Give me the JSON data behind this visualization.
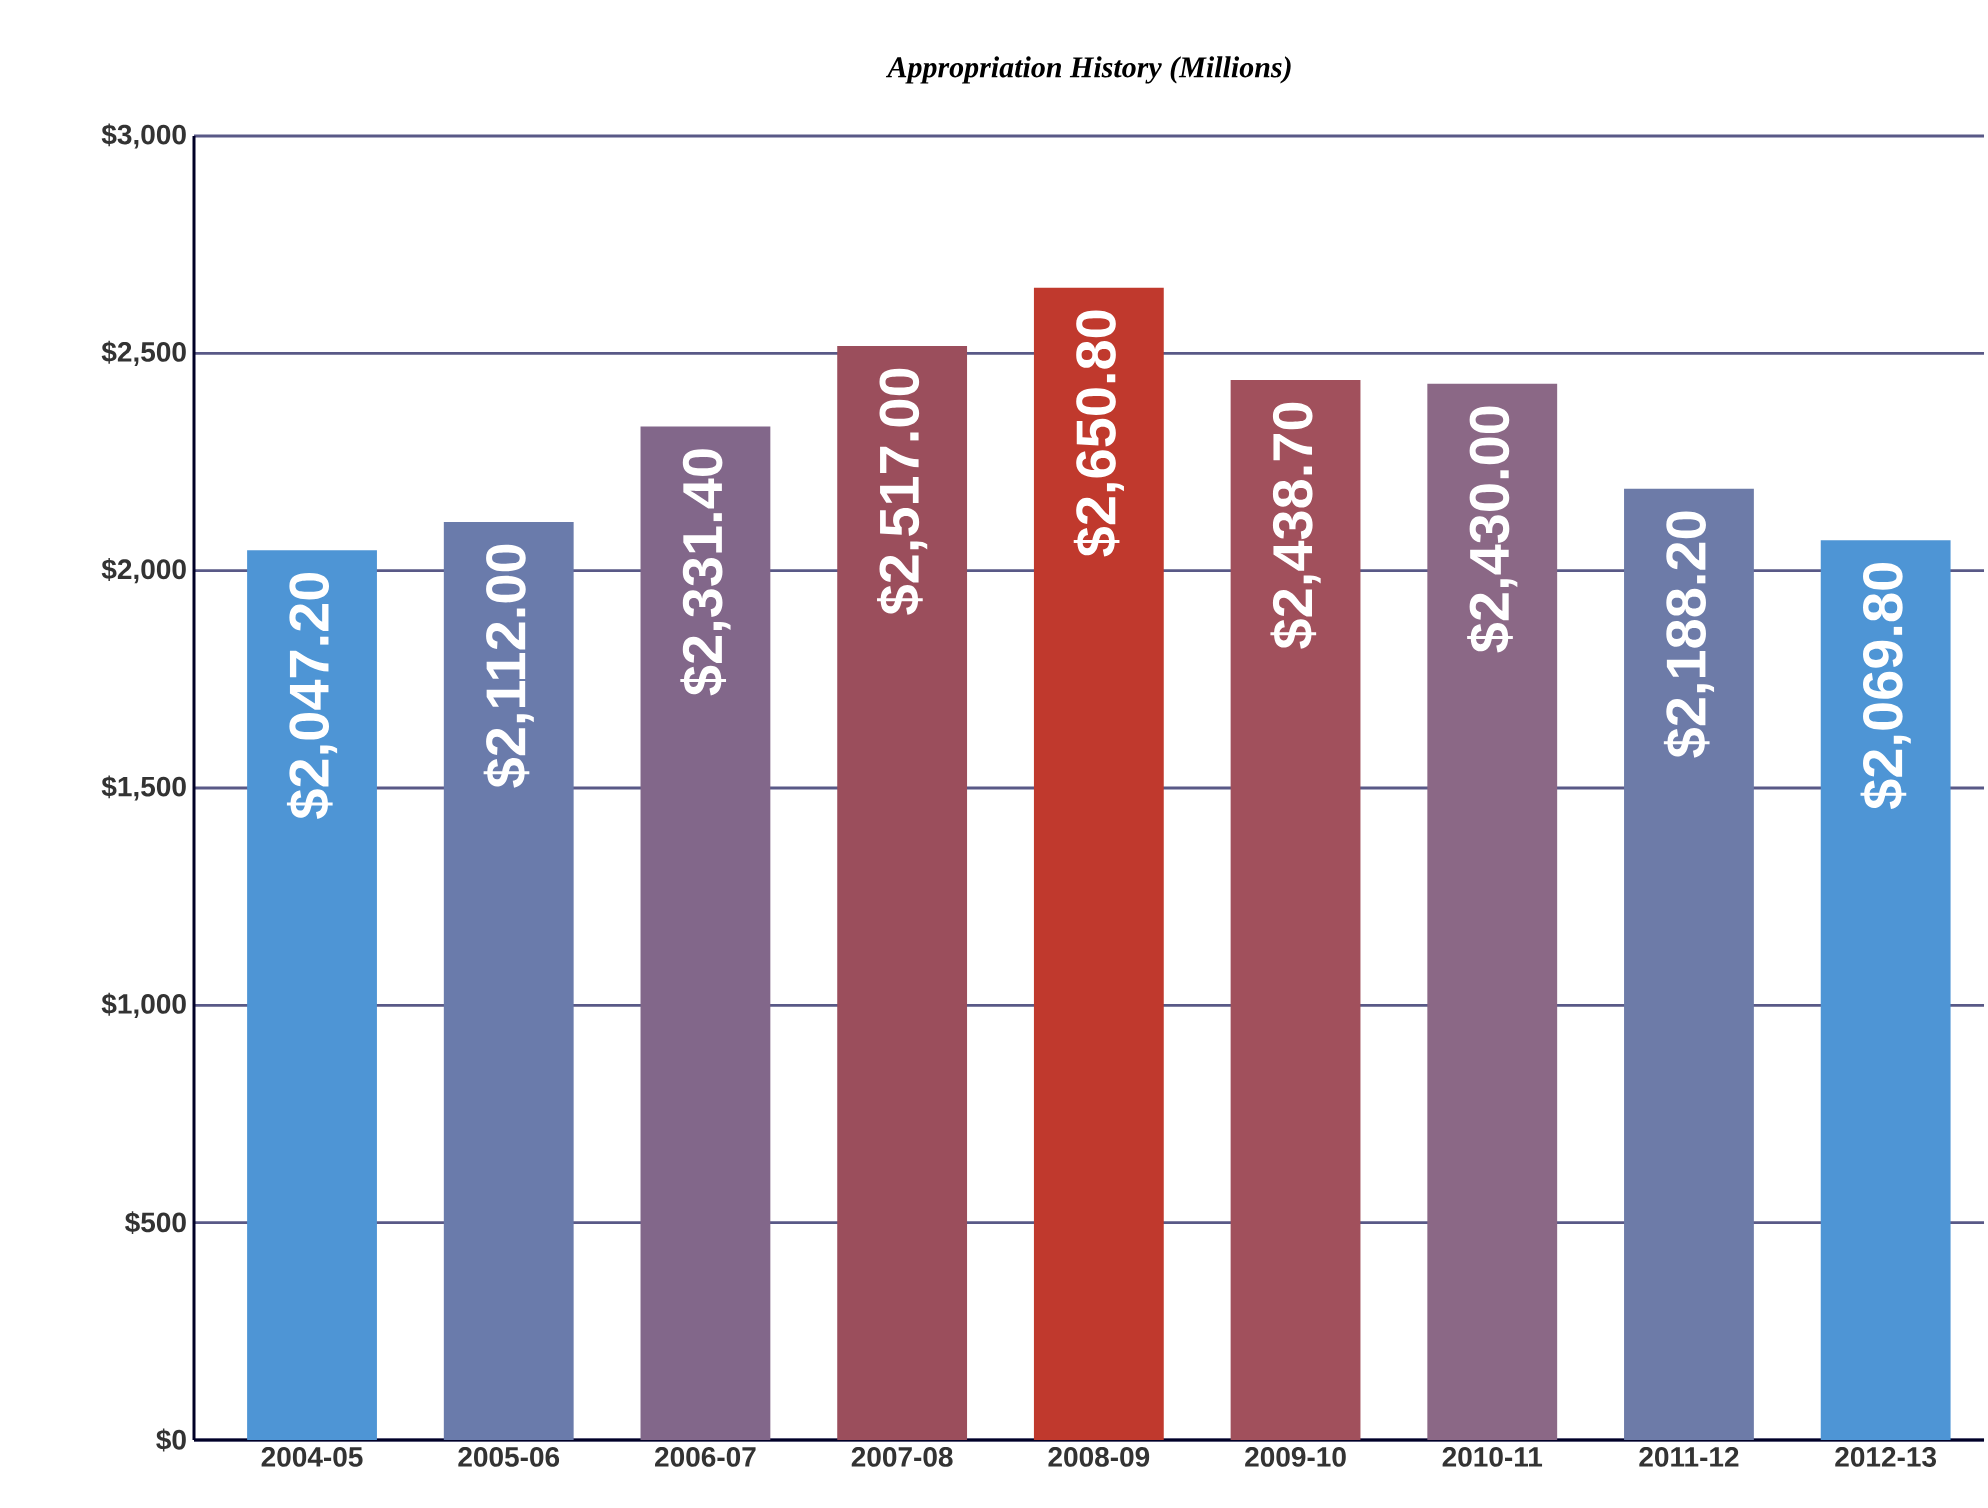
{
  "chart_data": {
    "type": "bar",
    "title": "Appropriation History (Millions)",
    "categories": [
      "2004-05",
      "2005-06",
      "2006-07",
      "2007-08",
      "2008-09",
      "2009-10",
      "2010-11",
      "2011-12",
      "2012-13"
    ],
    "values": [
      2047.2,
      2112.0,
      2331.4,
      2517.0,
      2650.8,
      2438.7,
      2430.0,
      2188.2,
      2069.8
    ],
    "value_labels": [
      "$2,047.20",
      "$2,112.00",
      "$2,331.40",
      "$2,517.00",
      "$2,650.80",
      "$2,438.70",
      "$2,430.00",
      "$2,188.20",
      "$2,069.80"
    ],
    "colors": [
      "#4e95d5",
      "#6a7bab",
      "#82678a",
      "#9b4e5c",
      "#c0392d",
      "#a1505c",
      "#8b6886",
      "#6d7ba8",
      "#4e95d5"
    ],
    "ylim": [
      0,
      3000
    ],
    "yticks": [
      {
        "value": 0,
        "label": "$0"
      },
      {
        "value": 500,
        "label": "$500"
      },
      {
        "value": 1000,
        "label": "$1,000"
      },
      {
        "value": 1500,
        "label": "$1,500"
      },
      {
        "value": 2000,
        "label": "$2,000"
      },
      {
        "value": 2500,
        "label": "$2,500"
      },
      {
        "value": 3000,
        "label": "$3,000"
      }
    ],
    "grid": "y"
  }
}
